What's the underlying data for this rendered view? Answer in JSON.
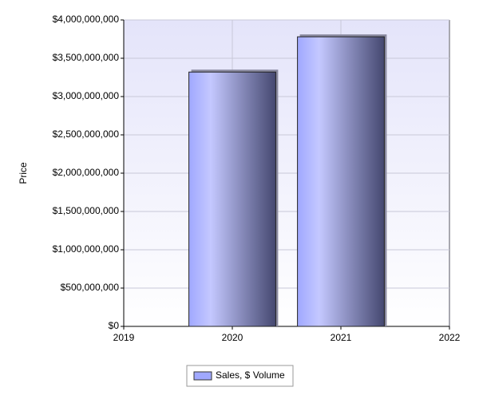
{
  "chart_data": {
    "type": "bar",
    "y_label": "Price",
    "x": [
      2020,
      2021
    ],
    "xlim": [
      2019,
      2022
    ],
    "xticks": [
      2019,
      2020,
      2021,
      2022
    ],
    "ylim": [
      0,
      4000000000
    ],
    "yticks": [
      {
        "value": 0,
        "label": "$0"
      },
      {
        "value": 500000000,
        "label": "$500,000,000"
      },
      {
        "value": 1000000000,
        "label": "$1,000,000,000"
      },
      {
        "value": 1500000000,
        "label": "$1,500,000,000"
      },
      {
        "value": 2000000000,
        "label": "$2,000,000,000"
      },
      {
        "value": 2500000000,
        "label": "$2,500,000,000"
      },
      {
        "value": 3000000000,
        "label": "$3,000,000,000"
      },
      {
        "value": 3500000000,
        "label": "$3,500,000,000"
      },
      {
        "value": 4000000000,
        "label": "$4,000,000,000"
      }
    ],
    "grid": true,
    "series": [
      {
        "name": "Sales, $ Volume",
        "color": "#a0a8ff",
        "values": [
          3320000000,
          3780000000
        ]
      }
    ]
  }
}
